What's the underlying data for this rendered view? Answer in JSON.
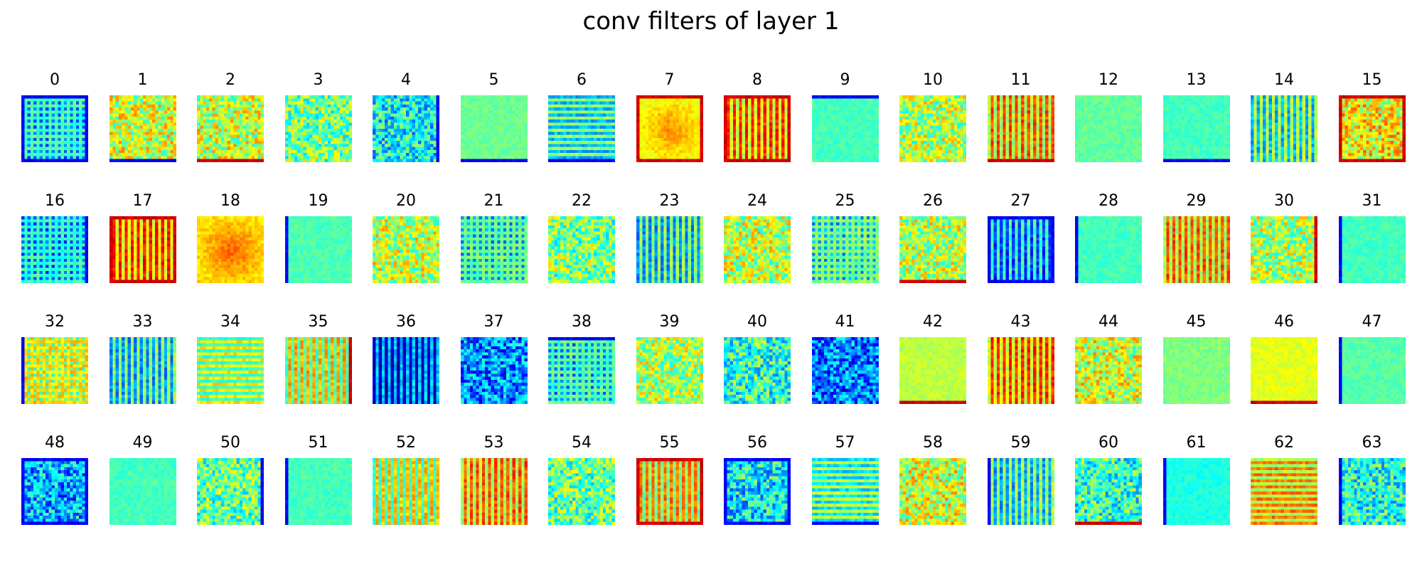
{
  "figure": {
    "title": "conv filters of layer 1",
    "colormap": "jet",
    "rows": 4,
    "columns": 16
  },
  "filters": [
    {
      "label": "0",
      "tone": 0.36,
      "pattern": "grid",
      "edge": "blue"
    },
    {
      "label": "1",
      "tone": 0.58,
      "pattern": "noise",
      "edge": "blue-bottom"
    },
    {
      "label": "2",
      "tone": 0.57,
      "pattern": "noise",
      "edge": "red-bottom"
    },
    {
      "label": "3",
      "tone": 0.5,
      "pattern": "noise",
      "edge": "none"
    },
    {
      "label": "4",
      "tone": 0.38,
      "pattern": "noise",
      "edge": "blue-right"
    },
    {
      "label": "5",
      "tone": 0.48,
      "pattern": "smooth",
      "edge": "blue-bottom"
    },
    {
      "label": "6",
      "tone": 0.4,
      "pattern": "hstripe",
      "edge": "blue-bottom"
    },
    {
      "label": "7",
      "tone": 0.62,
      "pattern": "blob",
      "edge": "red"
    },
    {
      "label": "8",
      "tone": 0.7,
      "pattern": "vstripe",
      "edge": "red"
    },
    {
      "label": "9",
      "tone": 0.44,
      "pattern": "smooth",
      "edge": "blue-top"
    },
    {
      "label": "10",
      "tone": 0.55,
      "pattern": "noise",
      "edge": "none"
    },
    {
      "label": "11",
      "tone": 0.66,
      "pattern": "vstripe",
      "edge": "red-bottom"
    },
    {
      "label": "12",
      "tone": 0.47,
      "pattern": "smooth",
      "edge": "none"
    },
    {
      "label": "13",
      "tone": 0.44,
      "pattern": "smooth",
      "edge": "blue-bottom"
    },
    {
      "label": "14",
      "tone": 0.42,
      "pattern": "vstripe",
      "edge": "none"
    },
    {
      "label": "15",
      "tone": 0.62,
      "pattern": "noise",
      "edge": "red"
    },
    {
      "label": "16",
      "tone": 0.34,
      "pattern": "grid",
      "edge": "blue-right"
    },
    {
      "label": "17",
      "tone": 0.72,
      "pattern": "vstripe",
      "edge": "red"
    },
    {
      "label": "18",
      "tone": 0.66,
      "pattern": "blob",
      "edge": "none"
    },
    {
      "label": "19",
      "tone": 0.45,
      "pattern": "smooth",
      "edge": "blue-left"
    },
    {
      "label": "20",
      "tone": 0.56,
      "pattern": "noise",
      "edge": "none"
    },
    {
      "label": "21",
      "tone": 0.4,
      "pattern": "grid",
      "edge": "none"
    },
    {
      "label": "22",
      "tone": 0.5,
      "pattern": "noise",
      "edge": "none"
    },
    {
      "label": "23",
      "tone": 0.38,
      "pattern": "vstripe",
      "edge": "none"
    },
    {
      "label": "24",
      "tone": 0.56,
      "pattern": "noise",
      "edge": "none"
    },
    {
      "label": "25",
      "tone": 0.42,
      "pattern": "grid",
      "edge": "none"
    },
    {
      "label": "26",
      "tone": 0.55,
      "pattern": "noise",
      "edge": "red-bottom"
    },
    {
      "label": "27",
      "tone": 0.3,
      "pattern": "vstripe",
      "edge": "blue"
    },
    {
      "label": "28",
      "tone": 0.44,
      "pattern": "smooth",
      "edge": "blue-left"
    },
    {
      "label": "29",
      "tone": 0.66,
      "pattern": "vstripe",
      "edge": "none"
    },
    {
      "label": "30",
      "tone": 0.55,
      "pattern": "noise",
      "edge": "red-right"
    },
    {
      "label": "31",
      "tone": 0.44,
      "pattern": "smooth",
      "edge": "blue-left"
    },
    {
      "label": "32",
      "tone": 0.58,
      "pattern": "grid",
      "edge": "blue-left"
    },
    {
      "label": "33",
      "tone": 0.38,
      "pattern": "vstripe",
      "edge": "none"
    },
    {
      "label": "34",
      "tone": 0.52,
      "pattern": "hstripe",
      "edge": "none"
    },
    {
      "label": "35",
      "tone": 0.57,
      "pattern": "vstripe",
      "edge": "red-right"
    },
    {
      "label": "36",
      "tone": 0.18,
      "pattern": "vstripe",
      "edge": "none"
    },
    {
      "label": "37",
      "tone": 0.26,
      "pattern": "noise",
      "edge": "none"
    },
    {
      "label": "38",
      "tone": 0.38,
      "pattern": "grid",
      "edge": "blue-top"
    },
    {
      "label": "39",
      "tone": 0.54,
      "pattern": "noise",
      "edge": "none"
    },
    {
      "label": "40",
      "tone": 0.42,
      "pattern": "noise",
      "edge": "none"
    },
    {
      "label": "41",
      "tone": 0.24,
      "pattern": "noise",
      "edge": "none"
    },
    {
      "label": "42",
      "tone": 0.56,
      "pattern": "smooth",
      "edge": "red-bottom"
    },
    {
      "label": "43",
      "tone": 0.7,
      "pattern": "vstripe",
      "edge": "none"
    },
    {
      "label": "44",
      "tone": 0.58,
      "pattern": "noise",
      "edge": "none"
    },
    {
      "label": "45",
      "tone": 0.5,
      "pattern": "smooth",
      "edge": "none"
    },
    {
      "label": "46",
      "tone": 0.6,
      "pattern": "smooth",
      "edge": "red-bottom"
    },
    {
      "label": "47",
      "tone": 0.46,
      "pattern": "smooth",
      "edge": "blue-left"
    },
    {
      "label": "48",
      "tone": 0.3,
      "pattern": "noise",
      "edge": "blue"
    },
    {
      "label": "49",
      "tone": 0.44,
      "pattern": "smooth",
      "edge": "none"
    },
    {
      "label": "50",
      "tone": 0.48,
      "pattern": "noise",
      "edge": "blue-right"
    },
    {
      "label": "51",
      "tone": 0.44,
      "pattern": "smooth",
      "edge": "blue-left"
    },
    {
      "label": "52",
      "tone": 0.55,
      "pattern": "vstripe",
      "edge": "none"
    },
    {
      "label": "53",
      "tone": 0.66,
      "pattern": "vstripe",
      "edge": "none"
    },
    {
      "label": "54",
      "tone": 0.48,
      "pattern": "noise",
      "edge": "none"
    },
    {
      "label": "55",
      "tone": 0.62,
      "pattern": "vstripe",
      "edge": "red"
    },
    {
      "label": "56",
      "tone": 0.36,
      "pattern": "noise",
      "edge": "blue"
    },
    {
      "label": "57",
      "tone": 0.44,
      "pattern": "hstripe",
      "edge": "blue-bottom"
    },
    {
      "label": "58",
      "tone": 0.58,
      "pattern": "noise",
      "edge": "none"
    },
    {
      "label": "59",
      "tone": 0.4,
      "pattern": "vstripe",
      "edge": "blue-left"
    },
    {
      "label": "60",
      "tone": 0.42,
      "pattern": "noise",
      "edge": "red-bottom"
    },
    {
      "label": "61",
      "tone": 0.4,
      "pattern": "smooth",
      "edge": "blue-left"
    },
    {
      "label": "62",
      "tone": 0.64,
      "pattern": "hstripe",
      "edge": "none"
    },
    {
      "label": "63",
      "tone": 0.4,
      "pattern": "noise",
      "edge": "blue-left"
    }
  ]
}
